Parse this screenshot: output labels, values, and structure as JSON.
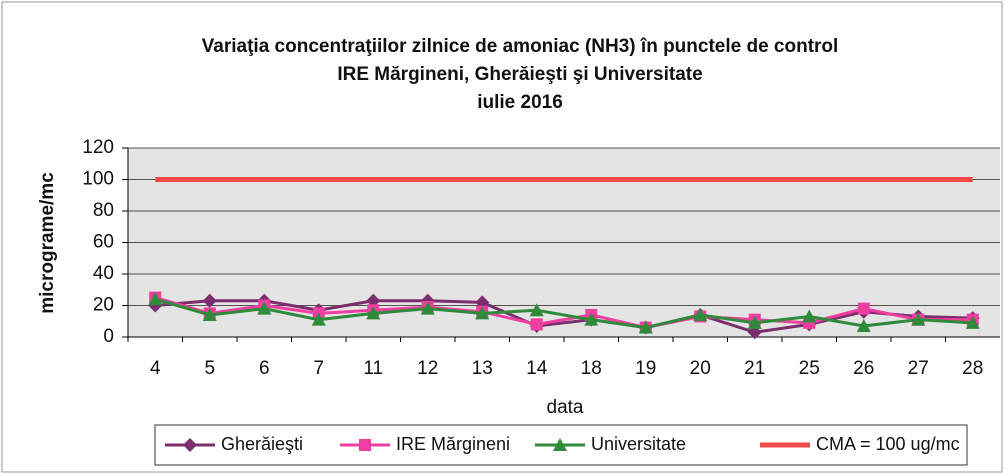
{
  "chart_data": {
    "type": "line",
    "title_lines": [
      "Variaţia concentraţiilor zilnice de amoniac (NH3) în punctele de control",
      "IRE Mărgineni, Gherăieşti şi Universitate",
      "iulie 2016"
    ],
    "x_label": "data",
    "y_label": "micrograme/mc",
    "categories": [
      "4",
      "5",
      "6",
      "7",
      "11",
      "12",
      "13",
      "14",
      "18",
      "19",
      "20",
      "21",
      "25",
      "26",
      "27",
      "28"
    ],
    "series": [
      {
        "name": "Gherăieşti",
        "color": "#7b2d6e",
        "marker": "diamond",
        "values": [
          20,
          23,
          23,
          17,
          23,
          23,
          22,
          7,
          11,
          6,
          14,
          3,
          8,
          16,
          13,
          12
        ]
      },
      {
        "name": "IRE Mărgineni",
        "color": "#ee3fa0",
        "marker": "square",
        "values": [
          25,
          15,
          20,
          15,
          17,
          19,
          16,
          8,
          14,
          6,
          13,
          11,
          9,
          18,
          11,
          11
        ]
      },
      {
        "name": "Universitate",
        "color": "#2f8a3a",
        "marker": "triangle",
        "values": [
          24,
          14,
          18,
          11,
          15,
          18,
          15,
          17,
          11,
          6,
          14,
          9,
          13,
          7,
          11,
          9
        ]
      },
      {
        "name": "CMA = 100 ug/mc",
        "color": "#f04a4a",
        "marker": "none",
        "values": [
          100,
          100,
          100,
          100,
          100,
          100,
          100,
          100,
          100,
          100,
          100,
          100,
          100,
          100,
          100,
          100
        ]
      }
    ],
    "ylim": [
      0,
      120
    ],
    "yticks": [
      0,
      20,
      40,
      60,
      80,
      100,
      120
    ],
    "grid": true
  }
}
